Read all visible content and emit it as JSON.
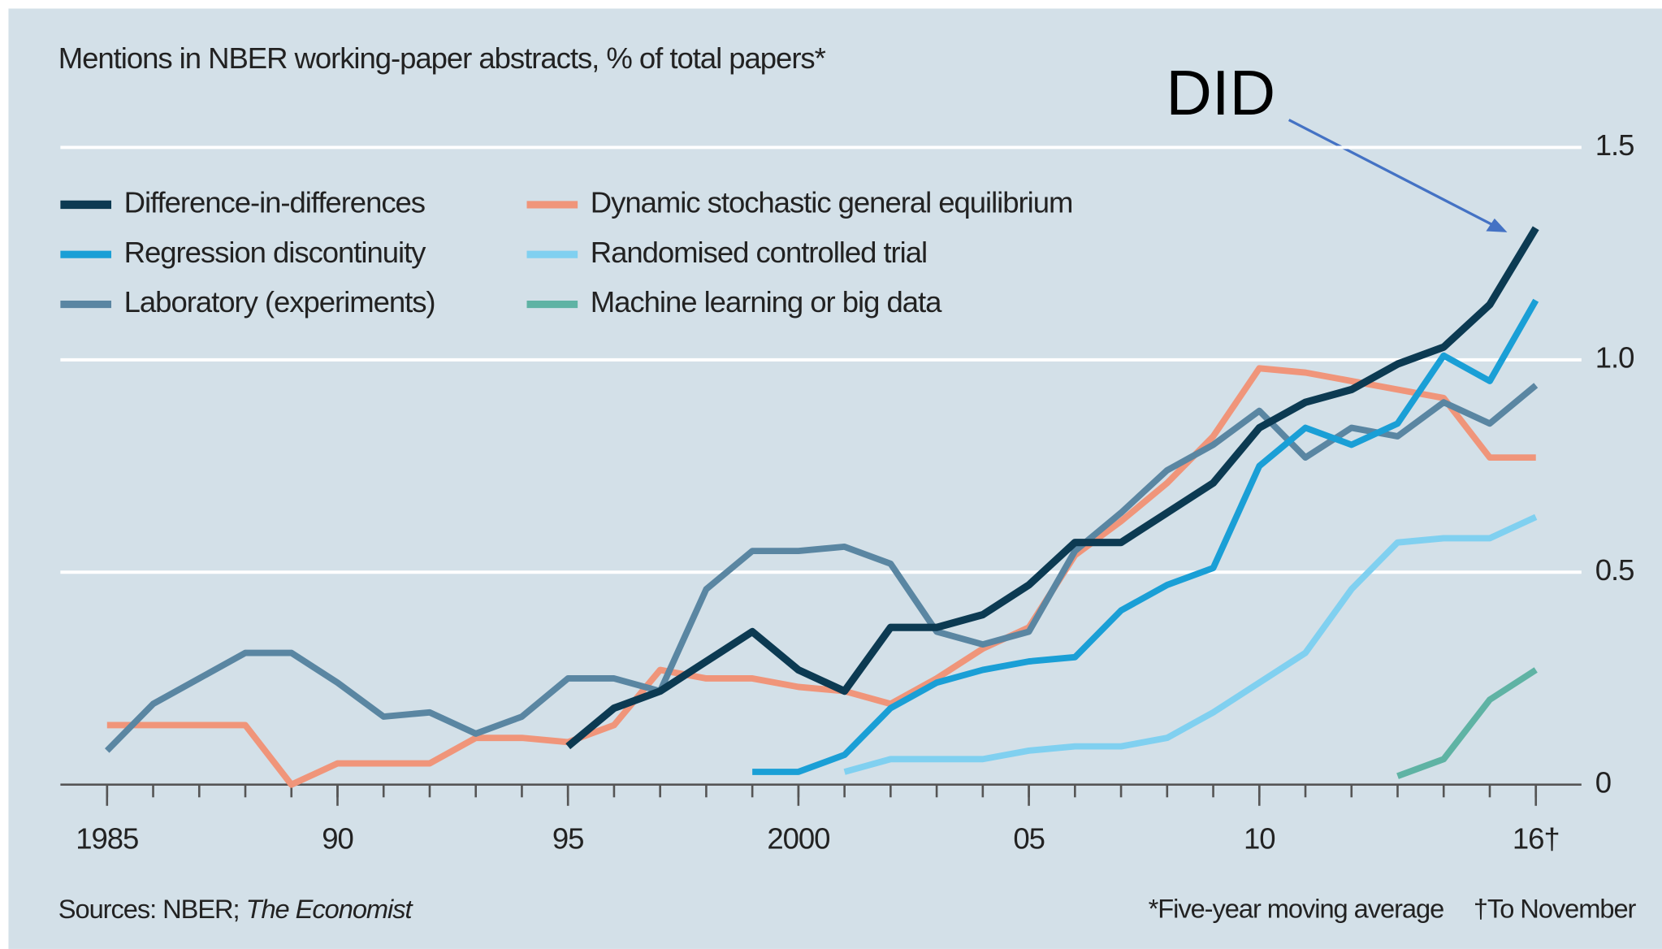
{
  "chart_data": {
    "type": "line",
    "subtitle": "Mentions in NBER working-paper abstracts, % of total papers*",
    "annotation": "DID",
    "source": "Sources: NBER;",
    "source_italic": "The Economist",
    "footnotes": [
      "*Five-year moving average",
      "†To November"
    ],
    "x": [
      1985,
      1986,
      1987,
      1988,
      1989,
      1990,
      1991,
      1992,
      1993,
      1994,
      1995,
      1996,
      1997,
      1998,
      1999,
      2000,
      2001,
      2002,
      2003,
      2004,
      2005,
      2006,
      2007,
      2008,
      2009,
      2010,
      2011,
      2012,
      2013,
      2014,
      2015,
      2016
    ],
    "xlim": [
      1985,
      2016
    ],
    "xticks": [
      1985,
      {
        "value": 1990,
        "label": "90"
      },
      {
        "value": 1995,
        "label": "95"
      },
      2000,
      {
        "value": 2005,
        "label": "05"
      },
      {
        "value": 2010,
        "label": "10"
      },
      {
        "value": 2016,
        "label": "16†"
      }
    ],
    "ylim": [
      0,
      1.5
    ],
    "yticks": [
      0,
      0.5,
      {
        "value": 1,
        "label": "1.0"
      },
      1.5
    ],
    "grid": true,
    "series": [
      {
        "name": "Difference-in-differences",
        "color": "#0c3a52",
        "values": [
          null,
          null,
          null,
          null,
          null,
          null,
          null,
          null,
          null,
          null,
          0.09,
          0.18,
          0.22,
          0.29,
          0.36,
          0.27,
          0.22,
          0.37,
          0.37,
          0.4,
          0.47,
          0.57,
          0.57,
          0.64,
          0.71,
          0.84,
          0.9,
          0.93,
          0.99,
          1.03,
          1.13,
          1.31
        ]
      },
      {
        "name": "Regression discontinuity",
        "color": "#1a9fd6",
        "values": [
          null,
          null,
          null,
          null,
          null,
          null,
          null,
          null,
          null,
          null,
          null,
          null,
          null,
          null,
          0.03,
          0.03,
          0.07,
          0.18,
          0.24,
          0.27,
          0.29,
          0.3,
          0.41,
          0.47,
          0.51,
          0.75,
          0.84,
          0.8,
          0.85,
          1.01,
          0.95,
          1.14
        ]
      },
      {
        "name": "Laboratory (experiments)",
        "color": "#5a86a2",
        "values": [
          0.08,
          0.19,
          0.25,
          0.31,
          0.31,
          0.24,
          0.16,
          0.17,
          0.12,
          0.16,
          0.25,
          0.25,
          0.22,
          0.46,
          0.55,
          0.55,
          0.56,
          0.52,
          0.36,
          0.33,
          0.36,
          0.55,
          0.64,
          0.74,
          0.8,
          0.88,
          0.77,
          0.84,
          0.82,
          0.9,
          0.85,
          0.94
        ]
      },
      {
        "name": "Dynamic stochastic general equilibrium",
        "color": "#f0957a",
        "values": [
          0.14,
          0.14,
          0.14,
          0.14,
          0.0,
          0.05,
          0.05,
          0.05,
          0.11,
          0.11,
          0.1,
          0.14,
          0.27,
          0.25,
          0.25,
          0.23,
          0.22,
          0.19,
          0.25,
          0.32,
          0.37,
          0.54,
          0.62,
          0.71,
          0.82,
          0.98,
          0.97,
          0.95,
          0.93,
          0.91,
          0.77,
          0.77
        ]
      },
      {
        "name": "Randomised controlled trial",
        "color": "#80d0f0",
        "values": [
          null,
          null,
          null,
          null,
          null,
          null,
          null,
          null,
          null,
          null,
          null,
          null,
          null,
          null,
          null,
          null,
          0.03,
          0.06,
          0.06,
          0.06,
          0.08,
          0.09,
          0.09,
          0.11,
          0.17,
          0.24,
          0.31,
          0.46,
          0.57,
          0.58,
          0.58,
          0.63
        ]
      },
      {
        "name": "Machine learning or big data",
        "color": "#5fb3a4",
        "values": [
          null,
          null,
          null,
          null,
          null,
          null,
          null,
          null,
          null,
          null,
          null,
          null,
          null,
          null,
          null,
          null,
          null,
          null,
          null,
          null,
          null,
          null,
          null,
          null,
          null,
          null,
          null,
          null,
          0.02,
          0.06,
          0.2,
          0.27
        ]
      }
    ]
  }
}
